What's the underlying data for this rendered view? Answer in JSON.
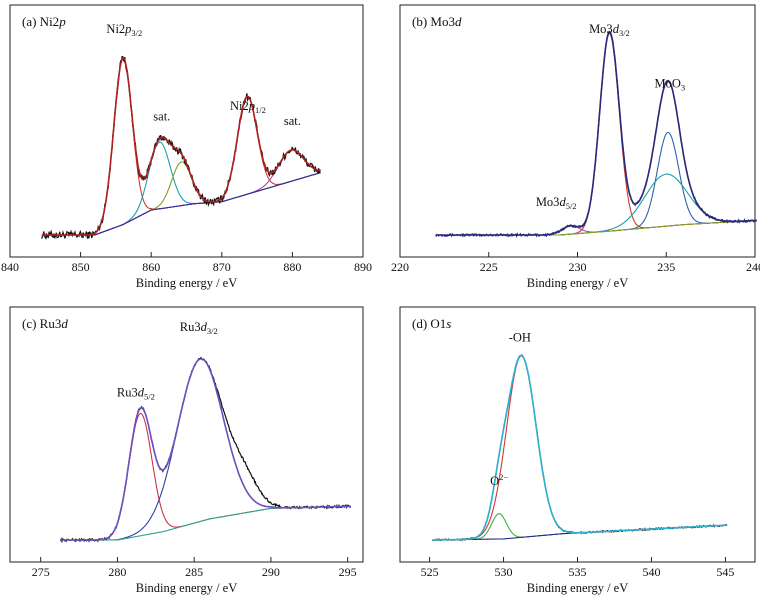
{
  "chart_data": [
    {
      "type": "line",
      "panel_label": "(a) Ni2",
      "panel_label_italic": "p",
      "xlabel": "Binding energy / eV",
      "xlim": [
        840,
        890
      ],
      "xticks": [
        "840",
        "850",
        "860",
        "870",
        "880",
        "890"
      ],
      "ylim": [
        0,
        1
      ],
      "annotations": [
        {
          "base": "Ni2",
          "ital": "p",
          "sub": "3/2",
          "x": 856.2,
          "y": 0.97
        },
        {
          "base": "sat.",
          "ital": "",
          "sub": "",
          "x": 861.5,
          "y": 0.55
        },
        {
          "base": "Ni2",
          "ital": "p",
          "sub": "1/2",
          "x": 873.7,
          "y": 0.6
        },
        {
          "base": "sat.",
          "ital": "",
          "sub": "",
          "x": 880,
          "y": 0.53
        }
      ],
      "peaks": [
        {
          "name": "Ni2p3/2",
          "center": 856.0,
          "width": 1.3,
          "height": 0.8,
          "color": "#d03a2a"
        },
        {
          "name": "sat. 1",
          "center": 861.2,
          "width": 1.5,
          "height": 0.32,
          "color": "#20a0a8"
        },
        {
          "name": "sat. 2",
          "center": 864.3,
          "width": 1.4,
          "height": 0.21,
          "color": "#8a9a20"
        },
        {
          "name": "Ni2p1/2",
          "center": 873.6,
          "width": 1.4,
          "height": 0.47,
          "color": "#d03a2a"
        },
        {
          "name": "sat. 3",
          "center": 879.8,
          "width": 1.8,
          "height": 0.15,
          "color": "#b040b0"
        }
      ],
      "background": {
        "x": [
          844,
          852,
          856,
          860,
          866,
          870,
          876,
          884
        ],
        "y": [
          0.0,
          0.0,
          0.05,
          0.12,
          0.15,
          0.16,
          0.22,
          0.3
        ],
        "color": "#3030a0"
      },
      "fit_color": "#b02020",
      "data_color": "#111111",
      "noise": 0.018,
      "xrange": [
        844.5,
        884
      ]
    },
    {
      "type": "line",
      "panel_label": "(b) Mo3",
      "panel_label_italic": "d",
      "xlabel": "Binding energy / eV",
      "xlim": [
        220,
        240
      ],
      "xticks": [
        "220",
        "225",
        "230",
        "235",
        "240"
      ],
      "ylim": [
        0,
        1
      ],
      "annotations": [
        {
          "base": "Mo3",
          "ital": "d",
          "sub": "3/2",
          "x": 231.8,
          "y": 0.97
        },
        {
          "base": "MoO",
          "ital": "",
          "sub": "3",
          "x": 235.2,
          "y": 0.71
        },
        {
          "base": "Mo3",
          "ital": "d",
          "sub": "5/2",
          "x": 228.8,
          "y": 0.14
        }
      ],
      "peaks": [
        {
          "name": "Mo3d3/2",
          "center": 231.8,
          "width": 0.55,
          "height": 0.95,
          "color": "#d03a2a"
        },
        {
          "name": "Mo3d5/2",
          "center": 229.6,
          "width": 0.5,
          "height": 0.04,
          "color": "#b040b0"
        },
        {
          "name": "MoO3 a",
          "center": 235.1,
          "width": 0.6,
          "height": 0.45,
          "color": "#3060b0"
        },
        {
          "name": "MoO3 b",
          "center": 235.0,
          "width": 1.2,
          "height": 0.25,
          "color": "#20a0a8"
        }
      ],
      "background": {
        "x": [
          222,
          229,
          232,
          236,
          240
        ],
        "y": [
          0.0,
          0.0,
          0.02,
          0.05,
          0.07
        ],
        "color": "#8a9a20"
      },
      "fit_color": "#2a2a7a",
      "data_color": "#2a2a7a",
      "noise": 0.006,
      "xrange": [
        222,
        240.1
      ]
    },
    {
      "type": "line",
      "panel_label": "(c) Ru3",
      "panel_label_italic": "d",
      "xlabel": "Binding energy / eV",
      "xlim": [
        273,
        296
      ],
      "xticks": [
        "275",
        "280",
        "285",
        "290",
        "295"
      ],
      "ylim": [
        0,
        1
      ],
      "annotations": [
        {
          "base": "Ru3",
          "ital": "d",
          "sub": "3/2",
          "x": 285.3,
          "y": 0.99
        },
        {
          "base": "Ru3",
          "ital": "d",
          "sub": "5/2",
          "x": 281.2,
          "y": 0.68
        }
      ],
      "peaks": [
        {
          "name": "Ru3d5/2",
          "center": 281.5,
          "width": 0.75,
          "height": 0.58,
          "color": "#d03050"
        },
        {
          "name": "Ru3d3/2",
          "center": 285.4,
          "width": 1.5,
          "height": 0.77,
          "color": "#3040a8"
        }
      ],
      "background": {
        "x": [
          276.3,
          280,
          283,
          286,
          290,
          295.2
        ],
        "y": [
          0.0,
          0.0,
          0.04,
          0.1,
          0.15,
          0.16
        ],
        "color": "#30a090"
      },
      "fit_color": "#7050c0",
      "data_color": "#111111",
      "noise": 0.006,
      "xrange": [
        276.3,
        295.2
      ],
      "shoulder": {
        "center": 288.3,
        "width": 0.9,
        "height": 0.12
      }
    },
    {
      "type": "line",
      "panel_label": "(d) O1",
      "panel_label_italic": "s",
      "xlabel": "Binding energy / eV",
      "xlim": [
        523,
        547
      ],
      "xticks": [
        "525",
        "530",
        "535",
        "540",
        "545"
      ],
      "ylim": [
        0,
        1
      ],
      "annotations": [
        {
          "base": "-OH",
          "ital": "",
          "sub": "",
          "x": 531.1,
          "y": 0.94
        },
        {
          "base": "O",
          "ital": "",
          "sup": "2−",
          "x": 529.7,
          "y": 0.26
        }
      ],
      "peaks": [
        {
          "name": "-OH",
          "center": 531.2,
          "width": 1.0,
          "height": 0.86,
          "color": "#d03a2a"
        },
        {
          "name": "O2-",
          "center": 529.7,
          "width": 0.5,
          "height": 0.12,
          "color": "#40b040"
        }
      ],
      "background": {
        "x": [
          525.2,
          530,
          534,
          545
        ],
        "y": [
          0.0,
          0.005,
          0.03,
          0.07
        ],
        "color": "#2a2a8a"
      },
      "fit_color": "#30b0d0",
      "data_color": "#111111",
      "noise": 0.004,
      "xrange": [
        525.2,
        545.1
      ]
    }
  ]
}
